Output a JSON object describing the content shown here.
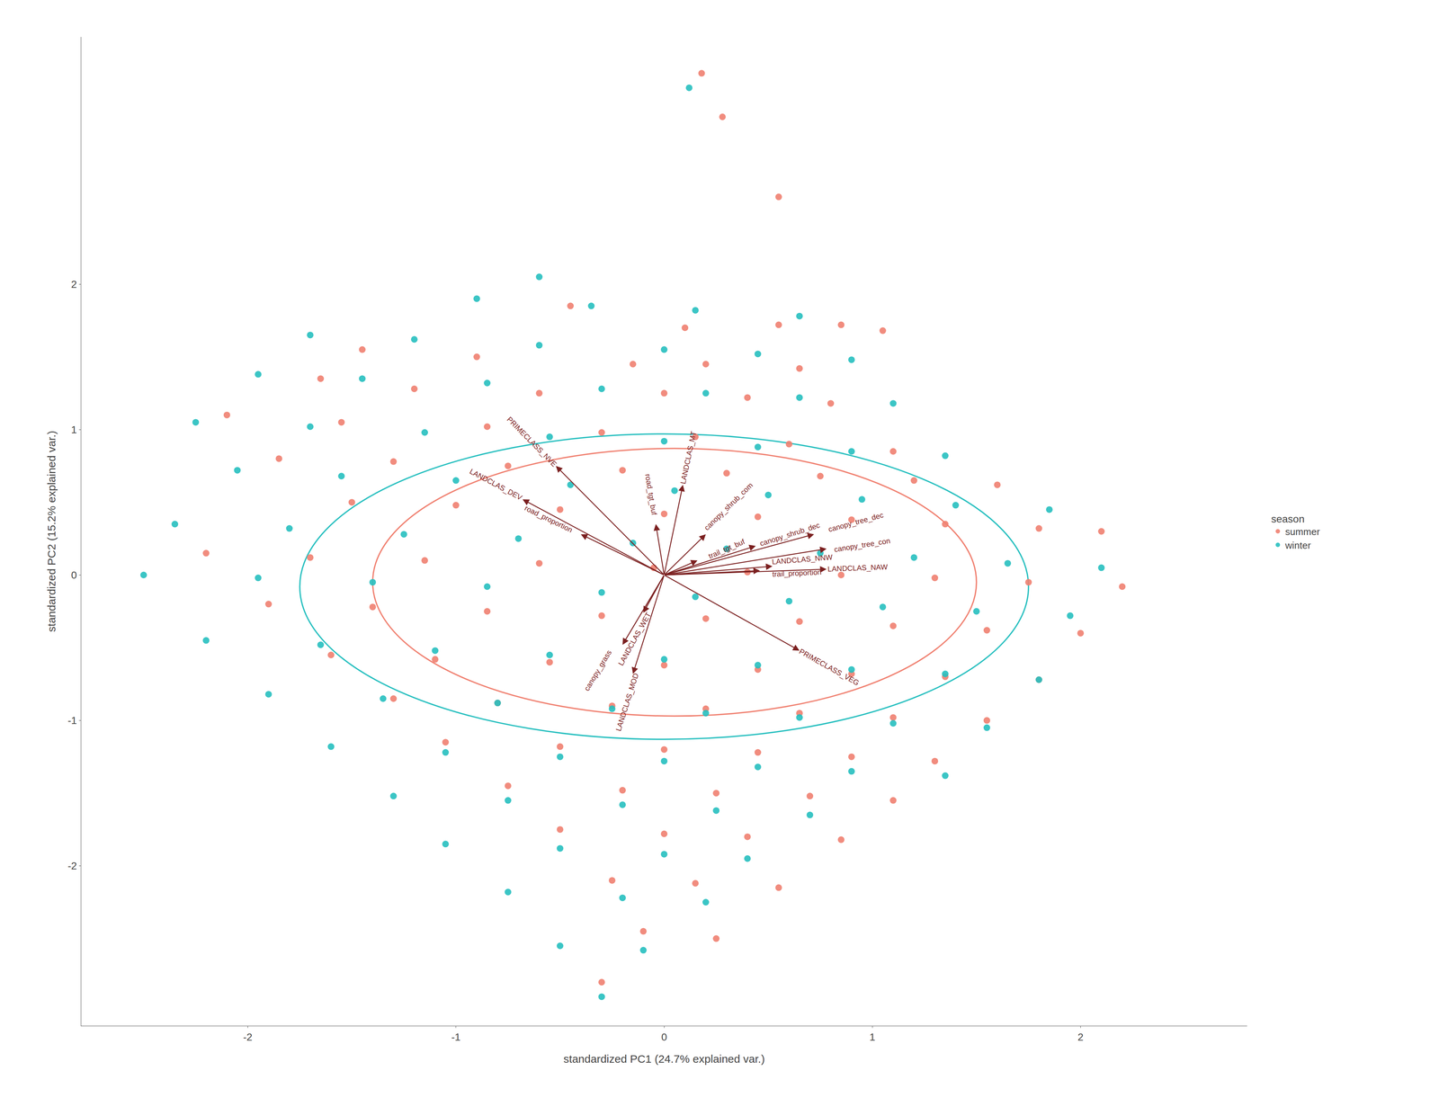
{
  "chart_data": {
    "type": "scatter",
    "xlabel": "standardized PC1 (24.7% explained var.)",
    "ylabel": "standardized PC2 (15.2% explained var.)",
    "xlim": [
      -2.8,
      2.8
    ],
    "ylim": [
      -3.1,
      3.7
    ],
    "xticks": [
      -2,
      -1,
      0,
      1,
      2
    ],
    "yticks": [
      -2,
      -1,
      0,
      1,
      2
    ],
    "grid": false,
    "legend": "right",
    "legend_title": "season",
    "series": [
      {
        "name": "summer",
        "color": "#F08070",
        "ellipse": {
          "cx": 0.05,
          "cy": -0.05,
          "rx": 1.45,
          "ry": 0.92
        },
        "values": [
          [
            0.18,
            3.45
          ],
          [
            0.28,
            3.15
          ],
          [
            0.55,
            2.6
          ],
          [
            -0.45,
            1.85
          ],
          [
            0.1,
            1.7
          ],
          [
            0.55,
            1.72
          ],
          [
            0.85,
            1.72
          ],
          [
            1.05,
            1.68
          ],
          [
            -1.45,
            1.55
          ],
          [
            -0.9,
            1.5
          ],
          [
            -0.15,
            1.45
          ],
          [
            0.2,
            1.45
          ],
          [
            0.65,
            1.42
          ],
          [
            -1.65,
            1.35
          ],
          [
            -1.2,
            1.28
          ],
          [
            -0.6,
            1.25
          ],
          [
            0.0,
            1.25
          ],
          [
            0.4,
            1.22
          ],
          [
            0.8,
            1.18
          ],
          [
            -2.1,
            1.1
          ],
          [
            -1.55,
            1.05
          ],
          [
            -0.85,
            1.02
          ],
          [
            -0.3,
            0.98
          ],
          [
            0.15,
            0.95
          ],
          [
            0.6,
            0.9
          ],
          [
            1.1,
            0.85
          ],
          [
            -1.85,
            0.8
          ],
          [
            -1.3,
            0.78
          ],
          [
            -0.75,
            0.75
          ],
          [
            -0.2,
            0.72
          ],
          [
            0.3,
            0.7
          ],
          [
            0.75,
            0.68
          ],
          [
            1.2,
            0.65
          ],
          [
            1.6,
            0.62
          ],
          [
            -1.5,
            0.5
          ],
          [
            -1.0,
            0.48
          ],
          [
            -0.5,
            0.45
          ],
          [
            0.0,
            0.42
          ],
          [
            0.45,
            0.4
          ],
          [
            0.9,
            0.38
          ],
          [
            1.35,
            0.35
          ],
          [
            1.8,
            0.32
          ],
          [
            2.1,
            0.3
          ],
          [
            -2.2,
            0.15
          ],
          [
            -1.7,
            0.12
          ],
          [
            -1.15,
            0.1
          ],
          [
            -0.6,
            0.08
          ],
          [
            -0.05,
            0.05
          ],
          [
            0.4,
            0.02
          ],
          [
            0.85,
            0.0
          ],
          [
            1.3,
            -0.02
          ],
          [
            1.75,
            -0.05
          ],
          [
            2.2,
            -0.08
          ],
          [
            -1.9,
            -0.2
          ],
          [
            -1.4,
            -0.22
          ],
          [
            -0.85,
            -0.25
          ],
          [
            -0.3,
            -0.28
          ],
          [
            0.2,
            -0.3
          ],
          [
            0.65,
            -0.32
          ],
          [
            1.1,
            -0.35
          ],
          [
            1.55,
            -0.38
          ],
          [
            2.0,
            -0.4
          ],
          [
            -1.6,
            -0.55
          ],
          [
            -1.1,
            -0.58
          ],
          [
            -0.55,
            -0.6
          ],
          [
            0.0,
            -0.62
          ],
          [
            0.45,
            -0.65
          ],
          [
            0.9,
            -0.68
          ],
          [
            1.35,
            -0.7
          ],
          [
            1.8,
            -0.72
          ],
          [
            -1.3,
            -0.85
          ],
          [
            -0.8,
            -0.88
          ],
          [
            -0.25,
            -0.9
          ],
          [
            0.2,
            -0.92
          ],
          [
            0.65,
            -0.95
          ],
          [
            1.1,
            -0.98
          ],
          [
            1.55,
            -1.0
          ],
          [
            -1.05,
            -1.15
          ],
          [
            -0.5,
            -1.18
          ],
          [
            0.0,
            -1.2
          ],
          [
            0.45,
            -1.22
          ],
          [
            0.9,
            -1.25
          ],
          [
            1.3,
            -1.28
          ],
          [
            -0.75,
            -1.45
          ],
          [
            -0.2,
            -1.48
          ],
          [
            0.25,
            -1.5
          ],
          [
            0.7,
            -1.52
          ],
          [
            1.1,
            -1.55
          ],
          [
            -0.5,
            -1.75
          ],
          [
            0.0,
            -1.78
          ],
          [
            0.4,
            -1.8
          ],
          [
            0.85,
            -1.82
          ],
          [
            -0.25,
            -2.1
          ],
          [
            0.15,
            -2.12
          ],
          [
            0.55,
            -2.15
          ],
          [
            -0.1,
            -2.45
          ],
          [
            0.25,
            -2.5
          ],
          [
            -0.3,
            -2.8
          ]
        ]
      },
      {
        "name": "winter",
        "color": "#26BFBF",
        "ellipse": {
          "cx": 0.0,
          "cy": -0.08,
          "rx": 1.75,
          "ry": 1.05
        },
        "values": [
          [
            0.12,
            3.35
          ],
          [
            -0.6,
            2.05
          ],
          [
            -0.9,
            1.9
          ],
          [
            -0.35,
            1.85
          ],
          [
            0.15,
            1.82
          ],
          [
            0.65,
            1.78
          ],
          [
            -1.7,
            1.65
          ],
          [
            -1.2,
            1.62
          ],
          [
            -0.6,
            1.58
          ],
          [
            0.0,
            1.55
          ],
          [
            0.45,
            1.52
          ],
          [
            0.9,
            1.48
          ],
          [
            -1.95,
            1.38
          ],
          [
            -1.45,
            1.35
          ],
          [
            -0.85,
            1.32
          ],
          [
            -0.3,
            1.28
          ],
          [
            0.2,
            1.25
          ],
          [
            0.65,
            1.22
          ],
          [
            1.1,
            1.18
          ],
          [
            -2.25,
            1.05
          ],
          [
            -1.7,
            1.02
          ],
          [
            -1.15,
            0.98
          ],
          [
            -0.55,
            0.95
          ],
          [
            0.0,
            0.92
          ],
          [
            0.45,
            0.88
          ],
          [
            0.9,
            0.85
          ],
          [
            1.35,
            0.82
          ],
          [
            -2.05,
            0.72
          ],
          [
            -1.55,
            0.68
          ],
          [
            -1.0,
            0.65
          ],
          [
            -0.45,
            0.62
          ],
          [
            0.05,
            0.58
          ],
          [
            0.5,
            0.55
          ],
          [
            0.95,
            0.52
          ],
          [
            1.4,
            0.48
          ],
          [
            1.85,
            0.45
          ],
          [
            -2.35,
            0.35
          ],
          [
            -1.8,
            0.32
          ],
          [
            -1.25,
            0.28
          ],
          [
            -0.7,
            0.25
          ],
          [
            -0.15,
            0.22
          ],
          [
            0.3,
            0.18
          ],
          [
            0.75,
            0.15
          ],
          [
            1.2,
            0.12
          ],
          [
            1.65,
            0.08
          ],
          [
            2.1,
            0.05
          ],
          [
            -2.5,
            0.0
          ],
          [
            -1.95,
            -0.02
          ],
          [
            -1.4,
            -0.05
          ],
          [
            -0.85,
            -0.08
          ],
          [
            -0.3,
            -0.12
          ],
          [
            0.15,
            -0.15
          ],
          [
            0.6,
            -0.18
          ],
          [
            1.05,
            -0.22
          ],
          [
            1.5,
            -0.25
          ],
          [
            1.95,
            -0.28
          ],
          [
            -2.2,
            -0.45
          ],
          [
            -1.65,
            -0.48
          ],
          [
            -1.1,
            -0.52
          ],
          [
            -0.55,
            -0.55
          ],
          [
            0.0,
            -0.58
          ],
          [
            0.45,
            -0.62
          ],
          [
            0.9,
            -0.65
          ],
          [
            1.35,
            -0.68
          ],
          [
            1.8,
            -0.72
          ],
          [
            -1.9,
            -0.82
          ],
          [
            -1.35,
            -0.85
          ],
          [
            -0.8,
            -0.88
          ],
          [
            -0.25,
            -0.92
          ],
          [
            0.2,
            -0.95
          ],
          [
            0.65,
            -0.98
          ],
          [
            1.1,
            -1.02
          ],
          [
            1.55,
            -1.05
          ],
          [
            -1.6,
            -1.18
          ],
          [
            -1.05,
            -1.22
          ],
          [
            -0.5,
            -1.25
          ],
          [
            0.0,
            -1.28
          ],
          [
            0.45,
            -1.32
          ],
          [
            0.9,
            -1.35
          ],
          [
            1.35,
            -1.38
          ],
          [
            -1.3,
            -1.52
          ],
          [
            -0.75,
            -1.55
          ],
          [
            -0.2,
            -1.58
          ],
          [
            0.25,
            -1.62
          ],
          [
            0.7,
            -1.65
          ],
          [
            -1.05,
            -1.85
          ],
          [
            -0.5,
            -1.88
          ],
          [
            0.0,
            -1.92
          ],
          [
            0.4,
            -1.95
          ],
          [
            -0.75,
            -2.18
          ],
          [
            -0.2,
            -2.22
          ],
          [
            0.2,
            -2.25
          ],
          [
            -0.5,
            -2.55
          ],
          [
            -0.1,
            -2.58
          ],
          [
            -0.3,
            -2.9
          ]
        ]
      }
    ],
    "arrows": {
      "color": "#7B2020",
      "vectors": [
        {
          "dx": -0.52,
          "dy": 0.75,
          "label": "PRIMECLASS_NVE"
        },
        {
          "dx": -0.68,
          "dy": 0.52,
          "label": "LANDCLAS_DEV"
        },
        {
          "dx": -0.4,
          "dy": 0.28,
          "label": "road_proportion"
        },
        {
          "dx": 0.09,
          "dy": 0.62,
          "label": "LANDCLAS_MT"
        },
        {
          "dx": -0.04,
          "dy": 0.35,
          "label": "road_tgt_buf"
        },
        {
          "dx": 0.2,
          "dy": 0.28,
          "label": "canopy_shrub_com"
        },
        {
          "dx": 0.44,
          "dy": 0.2,
          "label": "canopy_shrub_dec"
        },
        {
          "dx": 0.16,
          "dy": 0.1,
          "label": "trail_tgt_buf"
        },
        {
          "dx": 0.52,
          "dy": 0.06,
          "label": "LANDCLAS_NNW"
        },
        {
          "dx": 0.78,
          "dy": 0.04,
          "label": "LANDCLAS_NAW"
        },
        {
          "dx": 0.72,
          "dy": 0.28,
          "label": "canopy_tree_dec"
        },
        {
          "dx": 0.78,
          "dy": 0.18,
          "label": "canopy_tree_con"
        },
        {
          "dx": 0.46,
          "dy": 0.03,
          "label": "trail_proportion"
        },
        {
          "dx": -0.1,
          "dy": -0.26,
          "label": "LANDCLAS_WET"
        },
        {
          "dx": -0.2,
          "dy": -0.48,
          "label": "canopy_grass"
        },
        {
          "dx": -0.15,
          "dy": -0.68,
          "label": "LANDCLAS_MOD"
        },
        {
          "dx": 0.65,
          "dy": -0.52,
          "label": "PRIMECLASS_VEG"
        }
      ]
    }
  }
}
